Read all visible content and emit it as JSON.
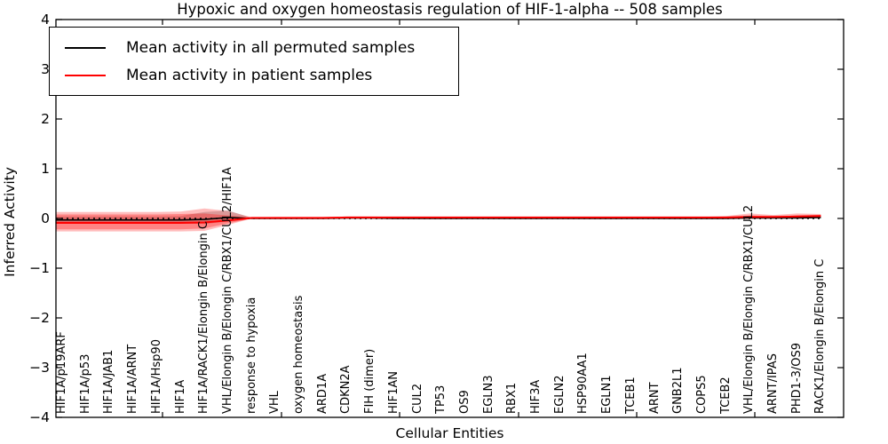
{
  "title": "Hypoxic and oxygen homeostasis regulation of HIF-1-alpha -- 508 samples",
  "axes": {
    "ylabel": "Inferred Activity",
    "xlabel": "Cellular Entities",
    "yticks": [
      "4",
      "3",
      "2",
      "1",
      "0",
      "−1",
      "−2",
      "−3",
      "−4"
    ]
  },
  "legend": [
    {
      "label": "Mean activity in all permuted samples",
      "color": "#000000"
    },
    {
      "label": "Mean activity in patient samples",
      "color": "#ff0000"
    }
  ],
  "chart_data": {
    "type": "line",
    "title": "Hypoxic and oxygen homeostasis regulation of HIF-1-alpha -- 508 samples",
    "xlabel": "Cellular Entities",
    "ylabel": "Inferred Activity",
    "ylim": [
      -4,
      4
    ],
    "grid": false,
    "legend_position": "upper left",
    "zero_line": "dotted",
    "categories": [
      "HIF1A/p19ARF",
      "HIF1A/p53",
      "HIF1A/JAB1",
      "HIF1A/ARNT",
      "HIF1A/Hsp90",
      "HIF1A",
      "HIF1A/RACK1/Elongin B/Elongin C",
      "VHL/Elongin B/Elongin C/RBX1/CUL2/HIF1A",
      "response to hypoxia",
      "VHL",
      "oxygen homeostasis",
      "ARD1A",
      "CDKN2A",
      "FIH (dimer)",
      "HIF1AN",
      "CUL2",
      "TP53",
      "OS9",
      "EGLN3",
      "RBX1",
      "HIF3A",
      "EGLN2",
      "HSP90AA1",
      "EGLN1",
      "TCEB1",
      "ARNT",
      "GNB2L1",
      "COPS5",
      "TCEB2",
      "VHL/Elongin B/Elongin C/RBX1/CUL2",
      "ARNT/IPAS",
      "PHD1-3/OS9",
      "RACK1/Elongin B/Elongin C"
    ],
    "series": [
      {
        "name": "Mean activity in all permuted samples",
        "color": "#000000",
        "values": [
          -0.03,
          -0.03,
          -0.03,
          -0.03,
          -0.03,
          -0.03,
          -0.02,
          0.02,
          0,
          0,
          0,
          0,
          0.01,
          0.01,
          0,
          0,
          0,
          0,
          0,
          0,
          0,
          0,
          0,
          0,
          0,
          0,
          0,
          0,
          0,
          0.01,
          0.01,
          0.01,
          0.02
        ]
      },
      {
        "name": "Mean activity in patient samples",
        "color": "#ff0000",
        "values": [
          -0.09,
          -0.09,
          -0.09,
          -0.09,
          -0.09,
          -0.09,
          -0.08,
          -0.04,
          0.01,
          0.01,
          0.01,
          0.01,
          0.02,
          0.02,
          0.02,
          0.02,
          0.02,
          0.02,
          0.02,
          0.02,
          0.02,
          0.02,
          0.02,
          0.02,
          0.02,
          0.02,
          0.02,
          0.02,
          0.02,
          0.03,
          0.03,
          0.04,
          0.05
        ]
      }
    ],
    "bands": [
      {
        "name": "permuted-band",
        "color": "#888888",
        "opacity": 0.4,
        "upper": [
          0.04,
          0.04,
          0.04,
          0.04,
          0.04,
          0.05,
          0.13,
          0.16,
          0.01,
          0.01,
          0.01,
          0.01,
          0.02,
          0.02,
          0.01,
          0.01,
          0.01,
          0.01,
          0.01,
          0.01,
          0.01,
          0.01,
          0.01,
          0.01,
          0.01,
          0.01,
          0.01,
          0.01,
          0.02,
          0.02,
          0.02,
          0.02,
          0.03
        ],
        "lower": [
          -0.1,
          -0.1,
          -0.1,
          -0.1,
          -0.1,
          -0.1,
          -0.11,
          -0.06,
          -0.01,
          -0.01,
          -0.01,
          -0.01,
          -0.01,
          -0.01,
          -0.01,
          -0.01,
          -0.01,
          -0.01,
          -0.01,
          -0.01,
          -0.01,
          -0.01,
          -0.01,
          -0.01,
          -0.01,
          -0.01,
          -0.01,
          -0.01,
          -0.01,
          0,
          0,
          0,
          0.01
        ]
      },
      {
        "name": "patient-band-outer",
        "color": "#ff0000",
        "opacity": 0.26,
        "upper": [
          0.13,
          0.13,
          0.13,
          0.13,
          0.13,
          0.14,
          0.2,
          0.15,
          0.02,
          0.03,
          0.03,
          0.03,
          0.04,
          0.04,
          0.03,
          0.03,
          0.03,
          0.03,
          0.03,
          0.03,
          0.03,
          0.03,
          0.03,
          0.03,
          0.03,
          0.03,
          0.03,
          0.03,
          0.05,
          0.1,
          0.07,
          0.1,
          0.09
        ],
        "lower": [
          -0.26,
          -0.26,
          -0.26,
          -0.26,
          -0.26,
          -0.26,
          -0.25,
          -0.13,
          0,
          0,
          0,
          0,
          0,
          0,
          0,
          0,
          0,
          0,
          0,
          0,
          0,
          0,
          0,
          0,
          0,
          0,
          0,
          0,
          0,
          0.01,
          0.01,
          0.01,
          0.02
        ]
      },
      {
        "name": "patient-band-inner",
        "color": "#ff0000",
        "opacity": 0.3,
        "upper": [
          0.08,
          0.08,
          0.08,
          0.08,
          0.08,
          0.09,
          0.1,
          0.06,
          0.02,
          0.02,
          0.02,
          0.02,
          0.03,
          0.03,
          0.02,
          0.02,
          0.02,
          0.02,
          0.02,
          0.02,
          0.02,
          0.02,
          0.02,
          0.02,
          0.02,
          0.02,
          0.02,
          0.02,
          0.03,
          0.06,
          0.04,
          0.06,
          0.07
        ],
        "lower": [
          -0.22,
          -0.22,
          -0.22,
          -0.22,
          -0.22,
          -0.22,
          -0.2,
          -0.1,
          0,
          0,
          0,
          0,
          0,
          0,
          0,
          0,
          0,
          0,
          0,
          0,
          0,
          0,
          0,
          0,
          0,
          0,
          0,
          0,
          0,
          0.01,
          0.01,
          0.02,
          0.03
        ]
      }
    ]
  }
}
